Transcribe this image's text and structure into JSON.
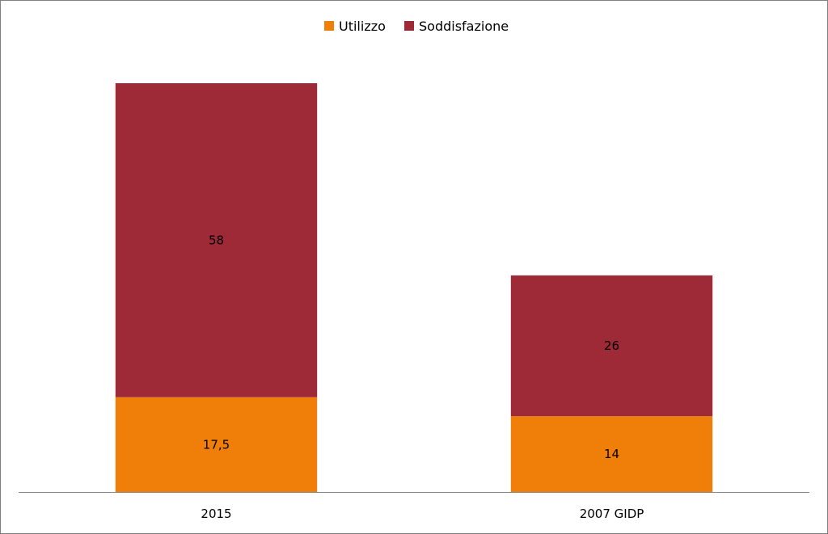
{
  "chart_data": {
    "type": "bar",
    "stacked": true,
    "categories": [
      "2015",
      "2007 GIDP"
    ],
    "series": [
      {
        "name": "Utilizzo",
        "values": [
          17.5,
          14
        ],
        "labels": [
          "17,5",
          "14"
        ],
        "color": "#f07f09"
      },
      {
        "name": "Soddisfazione",
        "values": [
          58,
          26
        ],
        "labels": [
          "58",
          "26"
        ],
        "color": "#9e2a37"
      }
    ],
    "legend_position": "top",
    "grid": false,
    "ylim": [
      0,
      75.5
    ],
    "axis_color": "#868686"
  }
}
